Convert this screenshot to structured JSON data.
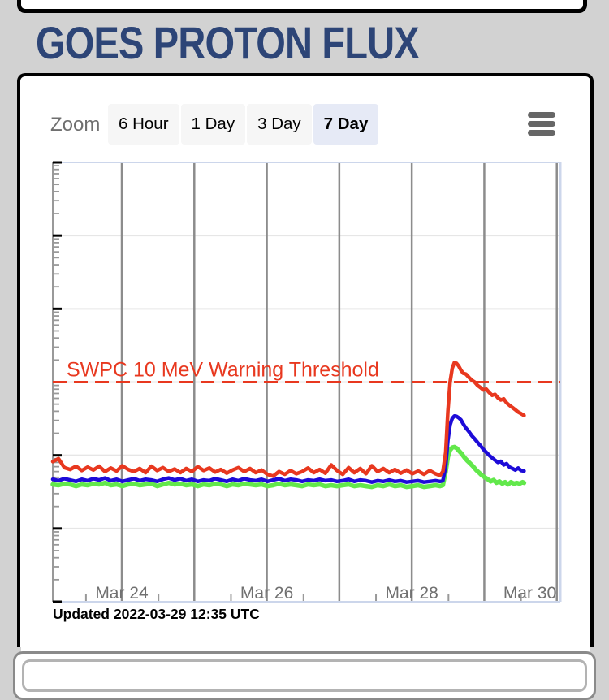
{
  "header": {
    "title": "GOES PROTON FLUX",
    "title_color": "#2d4577"
  },
  "toolbar": {
    "zoom_label": "Zoom",
    "buttons": [
      {
        "label": "6 Hour",
        "selected": false
      },
      {
        "label": "1 Day",
        "selected": false
      },
      {
        "label": "3 Day",
        "selected": false
      },
      {
        "label": "7 Day",
        "selected": true
      }
    ]
  },
  "footer": {
    "updated": "Updated 2022-03-29 12:35 UTC"
  },
  "chart_data": {
    "type": "line",
    "title": "",
    "xlabel": "",
    "ylabel": "",
    "yscale": "log",
    "ylim": [
      0.01,
      10000
    ],
    "xlim_days": [
      0,
      7
    ],
    "grid": true,
    "legend_position": "none",
    "x_gridline_days": [
      0.952,
      1.952,
      2.952,
      3.952,
      4.952,
      5.952,
      6.952
    ],
    "x_minor_tick_days": [
      0.458,
      1.458,
      2.458,
      3.458,
      4.458,
      5.458,
      6.458
    ],
    "x_tick_labels": [
      {
        "d": 0.952,
        "text": "Mar 24"
      },
      {
        "d": 2.952,
        "text": "Mar 26"
      },
      {
        "d": 4.952,
        "text": "Mar 28"
      },
      {
        "d": 6.58,
        "text": "Mar 30"
      }
    ],
    "threshold": {
      "value": 10,
      "label": "SWPC 10 MeV Warning Threshold",
      "color": "#e8381f"
    },
    "axis_colors": {
      "frame": "#ccd6eb",
      "y_axis_line": "#999999",
      "major_tick": "#000000",
      "minor_tick": "#999999",
      "x_gridline": "#8c8c8c",
      "y_gridline": "#e6e6e6",
      "label": "#707070"
    },
    "series": [
      {
        "name": "green-line",
        "color": "#62e84b",
        "stroke_width": 5.5,
        "segments": [
          {
            "x0": 0,
            "dx": 0.08,
            "v": [
              0.4,
              0.39,
              0.41,
              0.4,
              0.38,
              0.4,
              0.39,
              0.41,
              0.4,
              0.42,
              0.39,
              0.4,
              0.38,
              0.4,
              0.41,
              0.39,
              0.4,
              0.41,
              0.38,
              0.4,
              0.42,
              0.4,
              0.41,
              0.39,
              0.4,
              0.38,
              0.4,
              0.39,
              0.41,
              0.4,
              0.38,
              0.4,
              0.39,
              0.41,
              0.4,
              0.39,
              0.4,
              0.38,
              0.39,
              0.41,
              0.39,
              0.4,
              0.39,
              0.38,
              0.4,
              0.39,
              0.4,
              0.38,
              0.39,
              0.38,
              0.39,
              0.4,
              0.38,
              0.39,
              0.38,
              0.37,
              0.39,
              0.38,
              0.4,
              0.38,
              0.39,
              0.37,
              0.38,
              0.39,
              0.37,
              0.38,
              0.39
            ]
          },
          {
            "pts": [
              [
                5.34,
                0.38
              ],
              [
                5.38,
                0.39
              ],
              [
                5.42,
                0.6
              ],
              [
                5.45,
                0.95
              ],
              [
                5.48,
                1.18
              ],
              [
                5.51,
                1.28
              ],
              [
                5.54,
                1.3
              ],
              [
                5.57,
                1.25
              ],
              [
                5.6,
                1.16
              ],
              [
                5.64,
                1.05
              ],
              [
                5.68,
                0.93
              ],
              [
                5.72,
                0.84
              ],
              [
                5.76,
                0.77
              ],
              [
                5.8,
                0.7
              ],
              [
                5.84,
                0.63
              ],
              [
                5.88,
                0.58
              ],
              [
                5.92,
                0.53
              ],
              [
                5.96,
                0.5
              ],
              [
                6.0,
                0.47
              ],
              [
                6.04,
                0.44
              ],
              [
                6.08,
                0.46
              ],
              [
                6.12,
                0.42
              ],
              [
                6.16,
                0.44
              ],
              [
                6.2,
                0.41
              ],
              [
                6.24,
                0.43
              ],
              [
                6.28,
                0.4
              ],
              [
                6.32,
                0.43
              ],
              [
                6.36,
                0.41
              ],
              [
                6.4,
                0.42
              ],
              [
                6.44,
                0.41
              ],
              [
                6.48,
                0.43
              ],
              [
                6.5,
                0.42
              ]
            ]
          }
        ]
      },
      {
        "name": "blue-line",
        "color": "#1d0bd8",
        "stroke_width": 4.5,
        "segments": [
          {
            "x0": 0,
            "dx": 0.08,
            "v": [
              0.47,
              0.45,
              0.48,
              0.46,
              0.44,
              0.47,
              0.45,
              0.48,
              0.46,
              0.49,
              0.45,
              0.47,
              0.44,
              0.46,
              0.48,
              0.45,
              0.47,
              0.46,
              0.44,
              0.47,
              0.49,
              0.46,
              0.48,
              0.45,
              0.47,
              0.44,
              0.46,
              0.45,
              0.48,
              0.46,
              0.44,
              0.47,
              0.45,
              0.48,
              0.46,
              0.45,
              0.47,
              0.44,
              0.46,
              0.48,
              0.45,
              0.47,
              0.46,
              0.44,
              0.46,
              0.45,
              0.47,
              0.45,
              0.46,
              0.44,
              0.45,
              0.47,
              0.44,
              0.46,
              0.45,
              0.43,
              0.45,
              0.44,
              0.46,
              0.44,
              0.45,
              0.43,
              0.44,
              0.45,
              0.43,
              0.44,
              0.45
            ]
          },
          {
            "pts": [
              [
                5.34,
                0.44
              ],
              [
                5.38,
                0.45
              ],
              [
                5.42,
                0.7
              ],
              [
                5.45,
                1.6
              ],
              [
                5.48,
                2.6
              ],
              [
                5.51,
                3.2
              ],
              [
                5.54,
                3.45
              ],
              [
                5.57,
                3.4
              ],
              [
                5.6,
                3.25
              ],
              [
                5.63,
                3.05
              ],
              [
                5.66,
                2.7
              ],
              [
                5.7,
                2.35
              ],
              [
                5.74,
                2.1
              ],
              [
                5.78,
                1.85
              ],
              [
                5.82,
                1.68
              ],
              [
                5.86,
                1.5
              ],
              [
                5.9,
                1.35
              ],
              [
                5.94,
                1.2
              ],
              [
                5.98,
                1.1
              ],
              [
                6.02,
                1.0
              ],
              [
                6.06,
                0.92
              ],
              [
                6.1,
                0.86
              ],
              [
                6.14,
                0.8
              ],
              [
                6.18,
                0.83
              ],
              [
                6.22,
                0.74
              ],
              [
                6.26,
                0.77
              ],
              [
                6.3,
                0.69
              ],
              [
                6.34,
                0.66
              ],
              [
                6.38,
                0.63
              ],
              [
                6.42,
                0.67
              ],
              [
                6.46,
                0.62
              ],
              [
                6.5,
                0.61
              ]
            ]
          }
        ]
      },
      {
        "name": "red-line",
        "color": "#e8381f",
        "stroke_width": 4.5,
        "segments": [
          {
            "x0": 0,
            "dx": 0.08,
            "v": [
              0.82,
              0.9,
              0.68,
              0.64,
              0.71,
              0.62,
              0.69,
              0.63,
              0.71,
              0.6,
              0.67,
              0.61,
              0.72,
              0.64,
              0.6,
              0.66,
              0.58,
              0.71,
              0.62,
              0.68,
              0.6,
              0.65,
              0.58,
              0.66,
              0.6,
              0.7,
              0.62,
              0.67,
              0.59,
              0.64,
              0.57,
              0.63,
              0.68,
              0.6,
              0.66,
              0.58,
              0.63,
              0.55,
              0.52,
              0.6,
              0.55,
              0.62,
              0.56,
              0.6,
              0.67,
              0.58,
              0.64,
              0.57,
              0.74,
              0.62,
              0.55,
              0.68,
              0.58,
              0.66,
              0.56,
              0.72,
              0.6,
              0.66,
              0.58,
              0.64,
              0.57,
              0.63,
              0.56,
              0.61,
              0.55,
              0.62,
              0.56
            ]
          },
          {
            "pts": [
              [
                5.34,
                0.53
              ],
              [
                5.38,
                0.6
              ],
              [
                5.42,
                1.1
              ],
              [
                5.45,
                4.0
              ],
              [
                5.48,
                10.0
              ],
              [
                5.51,
                15.5
              ],
              [
                5.54,
                18.5
              ],
              [
                5.57,
                18.0
              ],
              [
                5.6,
                16.5
              ],
              [
                5.63,
                14.5
              ],
              [
                5.66,
                13.2
              ],
              [
                5.7,
                12.8
              ],
              [
                5.74,
                11.6
              ],
              [
                5.78,
                10.6
              ],
              [
                5.82,
                10.0
              ],
              [
                5.86,
                9.0
              ],
              [
                5.9,
                8.4
              ],
              [
                5.94,
                7.8
              ],
              [
                5.98,
                8.0
              ],
              [
                6.02,
                7.2
              ],
              [
                6.06,
                6.6
              ],
              [
                6.1,
                6.8
              ],
              [
                6.14,
                6.1
              ],
              [
                6.18,
                5.7
              ],
              [
                6.22,
                5.9
              ],
              [
                6.26,
                5.2
              ],
              [
                6.3,
                4.8
              ],
              [
                6.34,
                4.5
              ],
              [
                6.38,
                4.2
              ],
              [
                6.42,
                3.9
              ],
              [
                6.46,
                3.7
              ],
              [
                6.5,
                3.5
              ]
            ]
          }
        ]
      }
    ]
  }
}
